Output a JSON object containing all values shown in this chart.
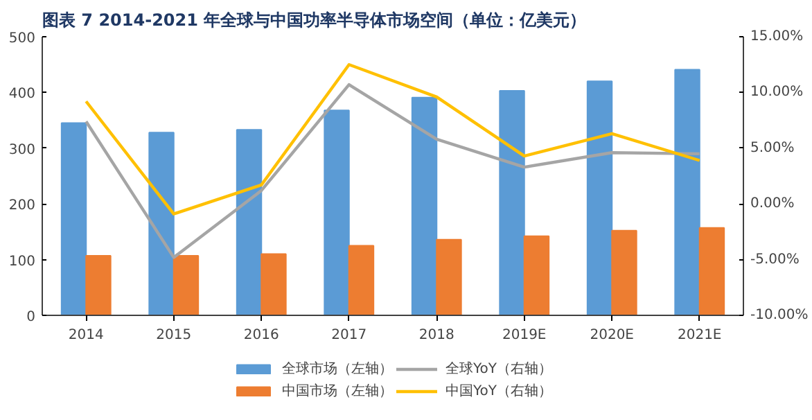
{
  "chart_data": {
    "type": "bar",
    "title": "图表 7   2014-2021 年全球与中国功率半导体市场空间（单位：亿美元）",
    "categories": [
      "2014",
      "2015",
      "2016",
      "2017",
      "2018",
      "2019E",
      "2020E",
      "2021E"
    ],
    "series": [
      {
        "name": "全球市场（左轴）",
        "color": "#5b9bd5",
        "values": [
          345,
          328,
          333,
          368,
          391,
          403,
          420,
          441
        ]
      },
      {
        "name": "中国市场（左轴）",
        "color": "#ed7d31",
        "values": [
          107,
          107,
          110,
          125,
          136,
          142,
          152,
          157
        ]
      },
      {
        "name": "全球YoY（右轴）",
        "type": "line",
        "axis": "y2",
        "color": "#a5a5a5",
        "values": [
          7.4,
          -4.8,
          1.2,
          10.7,
          5.8,
          3.3,
          4.6,
          4.5
        ]
      },
      {
        "name": "中国YoY（右轴）",
        "type": "line",
        "axis": "y2",
        "color": "#ffc000",
        "values": [
          9.2,
          -0.9,
          1.7,
          12.5,
          9.6,
          4.3,
          6.3,
          3.9
        ]
      }
    ],
    "ylim": [
      0,
      500
    ],
    "yticks": [
      0,
      100,
      200,
      300,
      400,
      500
    ],
    "y2lim": [
      -10,
      15
    ],
    "y2ticks": [
      {
        "value": -10,
        "label": "-10.00%"
      },
      {
        "value": -5,
        "label": "-5.00%"
      },
      {
        "value": 0,
        "label": "0.00%"
      },
      {
        "value": 5,
        "label": "5.00%"
      },
      {
        "value": 10,
        "label": "10.00%"
      },
      {
        "value": 15,
        "label": "15.00%"
      }
    ],
    "grid": false,
    "legend": "bottom",
    "marker": "none",
    "line_style": "solid"
  }
}
